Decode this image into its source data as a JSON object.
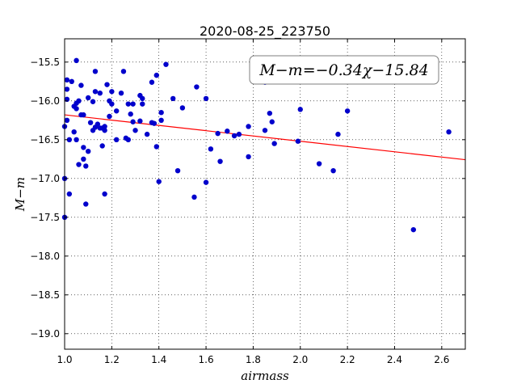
{
  "chart_data": {
    "type": "scatter",
    "title": "2020-08-25_223750",
    "xlabel": "airmass",
    "ylabel": "M−m",
    "xlim": [
      1.0,
      2.7
    ],
    "ylim": [
      -15.2,
      -19.2
    ],
    "y_inverted": true,
    "grid": true,
    "x_ticks": [
      "1.0",
      "1.2",
      "1.4",
      "1.6",
      "1.8",
      "2.0",
      "2.2",
      "2.4",
      "2.6"
    ],
    "x_tick_values": [
      1.0,
      1.2,
      1.4,
      1.6,
      1.8,
      2.0,
      2.2,
      2.4,
      2.6
    ],
    "y_ticks": [
      "−15.5",
      "−16.0",
      "−16.5",
      "−17.0",
      "−17.5",
      "−18.0",
      "−18.5",
      "−19.0"
    ],
    "y_tick_values": [
      -15.5,
      -16.0,
      -16.5,
      -17.0,
      -17.5,
      -18.0,
      -18.5,
      -19.0
    ],
    "annotation": "M−m=−0.34χ−15.84",
    "annotation_position": "top-right",
    "points_color": "#0000cc",
    "fit_color": "#ff0000",
    "fit": {
      "slope": -0.34,
      "intercept": -15.84
    },
    "points": [
      [
        1.0,
        -17.0
      ],
      [
        1.0,
        -17.5
      ],
      [
        1.0,
        -16.33
      ],
      [
        1.01,
        -15.98
      ],
      [
        1.01,
        -15.73
      ],
      [
        1.01,
        -15.85
      ],
      [
        1.01,
        -16.25
      ],
      [
        1.02,
        -16.5
      ],
      [
        1.02,
        -17.2
      ],
      [
        1.03,
        -15.75
      ],
      [
        1.04,
        -16.4
      ],
      [
        1.04,
        -16.07
      ],
      [
        1.05,
        -15.48
      ],
      [
        1.05,
        -16.03
      ],
      [
        1.05,
        -16.1
      ],
      [
        1.05,
        -16.5
      ],
      [
        1.06,
        -16.0
      ],
      [
        1.06,
        -16.82
      ],
      [
        1.07,
        -15.8
      ],
      [
        1.07,
        -16.18
      ],
      [
        1.08,
        -16.18
      ],
      [
        1.08,
        -16.75
      ],
      [
        1.08,
        -16.6
      ],
      [
        1.09,
        -16.84
      ],
      [
        1.09,
        -17.33
      ],
      [
        1.1,
        -16.65
      ],
      [
        1.11,
        -16.28
      ],
      [
        1.1,
        -15.96
      ],
      [
        1.12,
        -16.01
      ],
      [
        1.12,
        -16.38
      ],
      [
        1.13,
        -16.34
      ],
      [
        1.13,
        -15.62
      ],
      [
        1.13,
        -15.88
      ],
      [
        1.14,
        -16.3
      ],
      [
        1.15,
        -15.9
      ],
      [
        1.15,
        -16.35
      ],
      [
        1.16,
        -16.58
      ],
      [
        1.16,
        -16.35
      ],
      [
        1.17,
        -16.38
      ],
      [
        1.17,
        -16.33
      ],
      [
        1.17,
        -17.2
      ],
      [
        1.18,
        -15.79
      ],
      [
        1.19,
        -16.0
      ],
      [
        1.19,
        -16.2
      ],
      [
        1.2,
        -16.04
      ],
      [
        1.2,
        -15.88
      ],
      [
        1.22,
        -16.13
      ],
      [
        1.22,
        -16.5
      ],
      [
        1.24,
        -15.9
      ],
      [
        1.25,
        -15.62
      ],
      [
        1.26,
        -16.48
      ],
      [
        1.27,
        -16.04
      ],
      [
        1.27,
        -16.5
      ],
      [
        1.28,
        -16.17
      ],
      [
        1.29,
        -16.04
      ],
      [
        1.29,
        -16.27
      ],
      [
        1.3,
        -16.38
      ],
      [
        1.32,
        -16.26
      ],
      [
        1.32,
        -15.93
      ],
      [
        1.33,
        -15.97
      ],
      [
        1.33,
        -16.04
      ],
      [
        1.35,
        -16.43
      ],
      [
        1.37,
        -15.76
      ],
      [
        1.37,
        -16.28
      ],
      [
        1.38,
        -16.29
      ],
      [
        1.39,
        -16.59
      ],
      [
        1.39,
        -15.67
      ],
      [
        1.4,
        -17.04
      ],
      [
        1.41,
        -16.15
      ],
      [
        1.41,
        -16.25
      ],
      [
        1.43,
        -15.53
      ],
      [
        1.46,
        -15.97
      ],
      [
        1.48,
        -16.9
      ],
      [
        1.5,
        -16.09
      ],
      [
        1.55,
        -17.24
      ],
      [
        1.56,
        -15.82
      ],
      [
        1.6,
        -15.97
      ],
      [
        1.6,
        -17.05
      ],
      [
        1.62,
        -16.62
      ],
      [
        1.65,
        -16.42
      ],
      [
        1.66,
        -16.78
      ],
      [
        1.69,
        -16.39
      ],
      [
        1.72,
        -16.45
      ],
      [
        1.74,
        -16.43
      ],
      [
        1.78,
        -16.33
      ],
      [
        1.78,
        -16.72
      ],
      [
        1.85,
        -15.76
      ],
      [
        1.85,
        -16.38
      ],
      [
        1.87,
        -16.16
      ],
      [
        1.88,
        -16.27
      ],
      [
        1.89,
        -16.55
      ],
      [
        1.99,
        -16.52
      ],
      [
        2.0,
        -16.11
      ],
      [
        2.08,
        -16.81
      ],
      [
        2.14,
        -16.9
      ],
      [
        2.16,
        -16.43
      ],
      [
        2.2,
        -16.13
      ],
      [
        2.48,
        -17.66
      ],
      [
        2.63,
        -16.4
      ]
    ]
  }
}
